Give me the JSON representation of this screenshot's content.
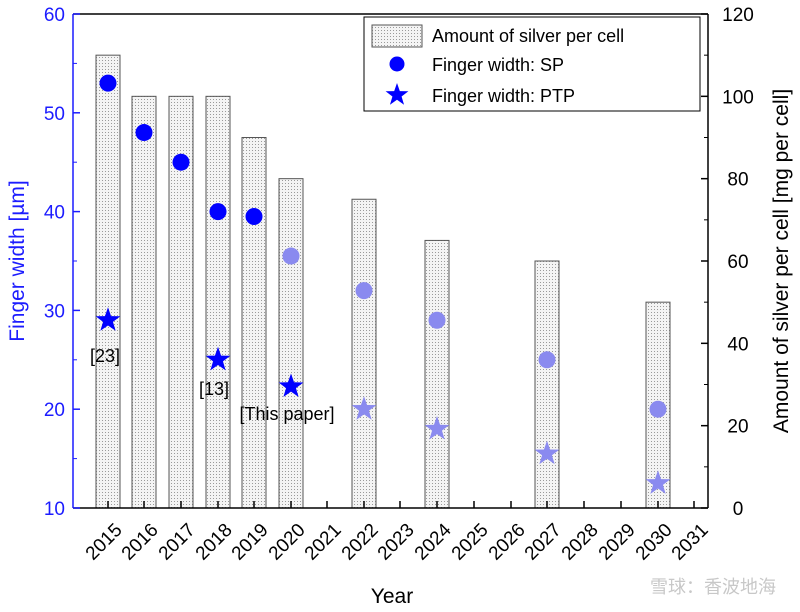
{
  "chart_data": {
    "type": "bar",
    "xlabel": "Year",
    "ylabel_left": "Finger width [µm]",
    "ylabel_right": "Amount of silver per cell [mg per cell]",
    "x_ticks": [
      "2015",
      "2016",
      "2017",
      "2018",
      "2019",
      "2020",
      "2021",
      "2022",
      "2023",
      "2024",
      "2025",
      "2026",
      "2027",
      "2028",
      "2029",
      "2030",
      "2031"
    ],
    "ylim_left": [
      10,
      60
    ],
    "yticks_left": [
      10,
      20,
      30,
      40,
      50,
      60
    ],
    "ylim_right": [
      0,
      120
    ],
    "yticks_right": [
      0,
      20,
      40,
      60,
      80,
      100,
      120
    ],
    "grid": false,
    "legend_position": "top-right",
    "series": [
      {
        "name": "Amount of silver per cell",
        "kind": "bar",
        "axis": "right",
        "x": [
          "2015",
          "2016",
          "2017",
          "2018",
          "2019",
          "2020",
          "2022",
          "2024",
          "2027",
          "2030"
        ],
        "values": [
          110,
          100,
          100,
          100,
          90,
          80,
          75,
          65,
          60,
          50
        ]
      },
      {
        "name": "Finger width: SP",
        "kind": "scatter",
        "marker": "circle",
        "axis": "left",
        "x": [
          "2015",
          "2016",
          "2017",
          "2018",
          "2019",
          "2020",
          "2022",
          "2024",
          "2027",
          "2030"
        ],
        "values": [
          53,
          48,
          45,
          40,
          39.5,
          35.5,
          32,
          29,
          25,
          20
        ],
        "projected_from": "2020"
      },
      {
        "name": "Finger width: PTP",
        "kind": "scatter",
        "marker": "star",
        "axis": "left",
        "x": [
          "2015",
          "2018",
          "2020",
          "2022",
          "2024",
          "2027",
          "2030"
        ],
        "values": [
          29,
          25,
          22.3,
          20,
          18,
          15.5,
          12.5
        ],
        "projected_from": "2022"
      }
    ],
    "annotations": [
      {
        "text": "[23]",
        "x": "2015",
        "series": "Finger width: PTP"
      },
      {
        "text": "[13]",
        "x": "2018",
        "series": "Finger width: PTP"
      },
      {
        "text": "[This paper]",
        "x": "2020",
        "series": "Finger width: PTP"
      }
    ],
    "colors": {
      "actual": "#0000ff",
      "projected": "#8a8aef",
      "left_axis": "#1c1cff",
      "bar_fill": "#ececec",
      "bar_edge": "#555555"
    }
  },
  "watermark": "雪球：香波地海"
}
